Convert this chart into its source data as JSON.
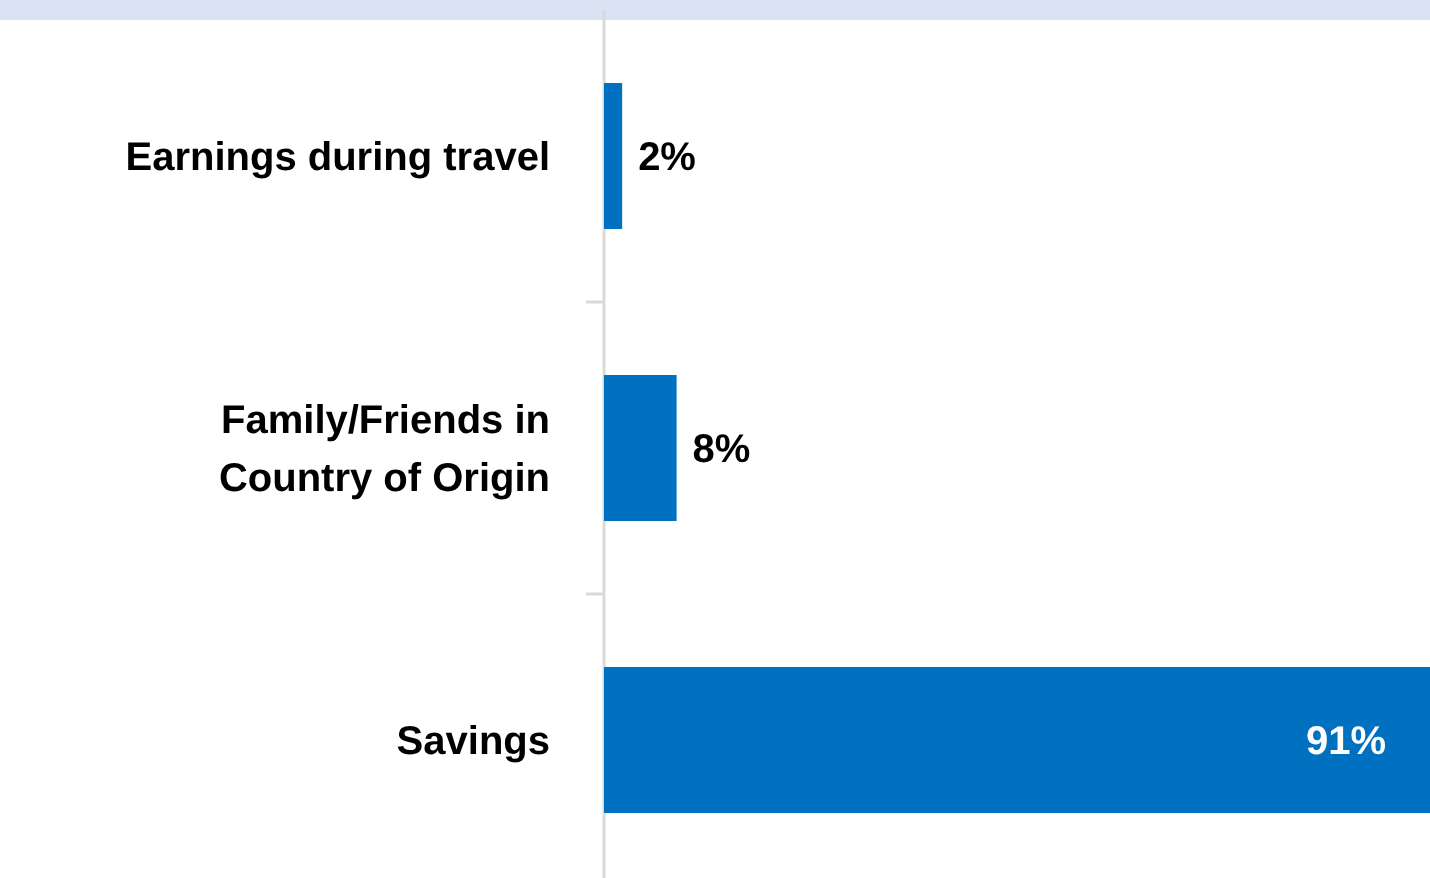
{
  "chart_data": {
    "type": "bar",
    "orientation": "horizontal",
    "relative": false,
    "categories": [
      "Earnings during travel",
      "Family/Friends in Country of Origin",
      "Savings"
    ],
    "values": [
      2,
      8,
      91
    ],
    "color": "#0070c0",
    "data_labels": true,
    "value_labels": [
      "2%",
      "8%",
      "91%"
    ]
  }
}
